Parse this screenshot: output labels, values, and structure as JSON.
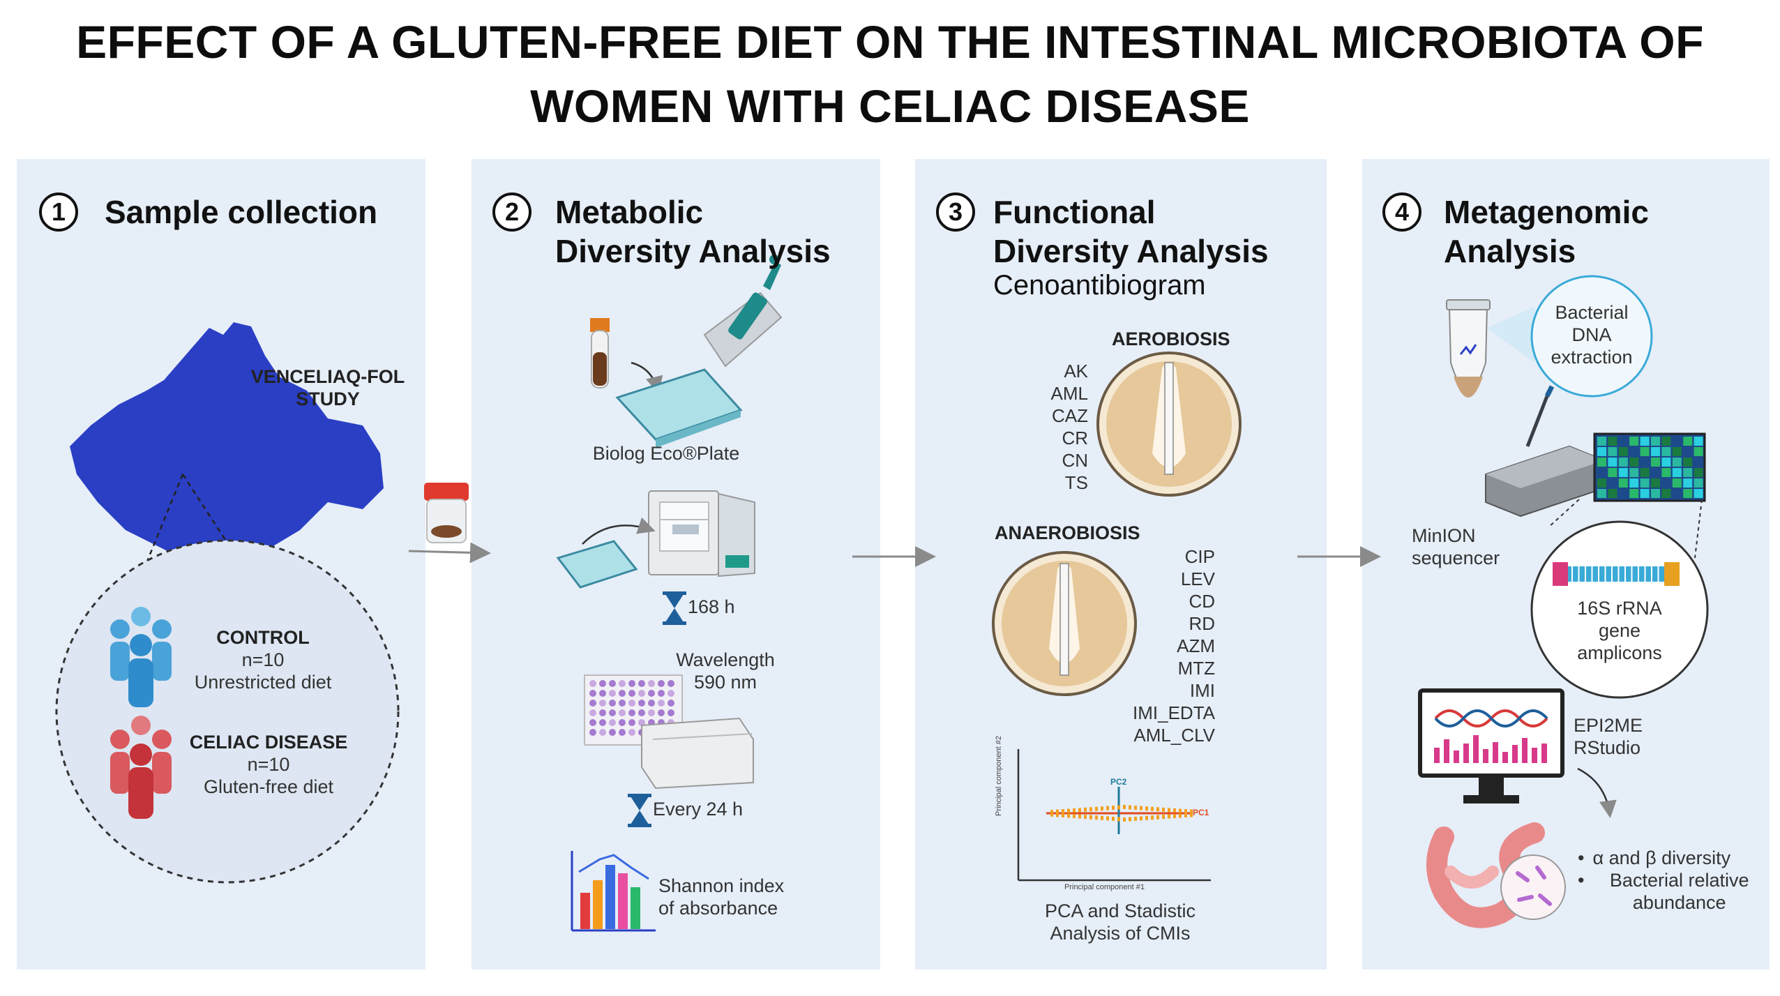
{
  "title": {
    "line1": "EFFECT OF A GLUTEN-FREE DIET ON THE INTESTINAL MICROBIOTA OF",
    "line2": "WOMEN WITH CELIAC DISEASE"
  },
  "panels": [
    {
      "number": "1",
      "title_lines": [
        "Sample collection"
      ],
      "study_label_lines": [
        "VENCELIAQ-FOL",
        "STUDY"
      ],
      "groups": [
        {
          "name": "CONTROL",
          "n": "n=10",
          "diet": "Unrestricted diet"
        },
        {
          "name": "CELIAC DISEASE",
          "n": "n=10",
          "diet": "Gluten-free diet"
        }
      ]
    },
    {
      "number": "2",
      "title_lines": [
        "Metabolic",
        "Diversity Analysis"
      ],
      "plate_label": "Biolog Eco®Plate",
      "incubation": "168 h",
      "wavelength_lines": [
        "Wavelength",
        "590 nm"
      ],
      "reading": "Every 24 h",
      "shannon_lines": [
        "Shannon index",
        "of absorbance"
      ]
    },
    {
      "number": "3",
      "title_lines": [
        "Functional",
        "Diversity Analysis"
      ],
      "subtitle": "Cenoantibiogram",
      "aerobiosis_label": "AEROBIOSIS",
      "aerobiosis_antibiotics": [
        "AK",
        "AML",
        "CAZ",
        "CR",
        "CN",
        "TS"
      ],
      "anaerobiosis_label": "ANAEROBIOSIS",
      "anaerobiosis_antibiotics": [
        "CIP",
        "LEV",
        "CD",
        "RD",
        "AZM",
        "MTZ",
        "IMI",
        "IMI_EDTA",
        "AML_CLV"
      ],
      "pca_axes": {
        "y": "Principal component #2",
        "x": "Principal component #1",
        "pc1": "PC1",
        "pc2": "PC2"
      },
      "pca_caption_lines": [
        "PCA and Stadistic",
        "Analysis of CMIs"
      ]
    },
    {
      "number": "4",
      "title_lines": [
        "Metagenomic",
        "Analysis"
      ],
      "dna_bubble_lines": [
        "Bacterial",
        "DNA",
        "extraction"
      ],
      "sequencer_lines": [
        "MinION",
        "sequencer"
      ],
      "amplicon_lines": [
        "16S rRNA",
        "gene",
        "amplicons"
      ],
      "software_lines": [
        "EPI2ME",
        "RStudio"
      ],
      "outputs": [
        "α and β diversity",
        "Bacterial relative abundance"
      ]
    }
  ],
  "colors": {
    "panel_bg": "#e6eef8",
    "map_blue": "#2a3fc4",
    "control_blue": "#4aa3d8",
    "celiac_red": "#c4333a",
    "agar": "#e6c89a",
    "arrow": "#8a8a8a"
  }
}
